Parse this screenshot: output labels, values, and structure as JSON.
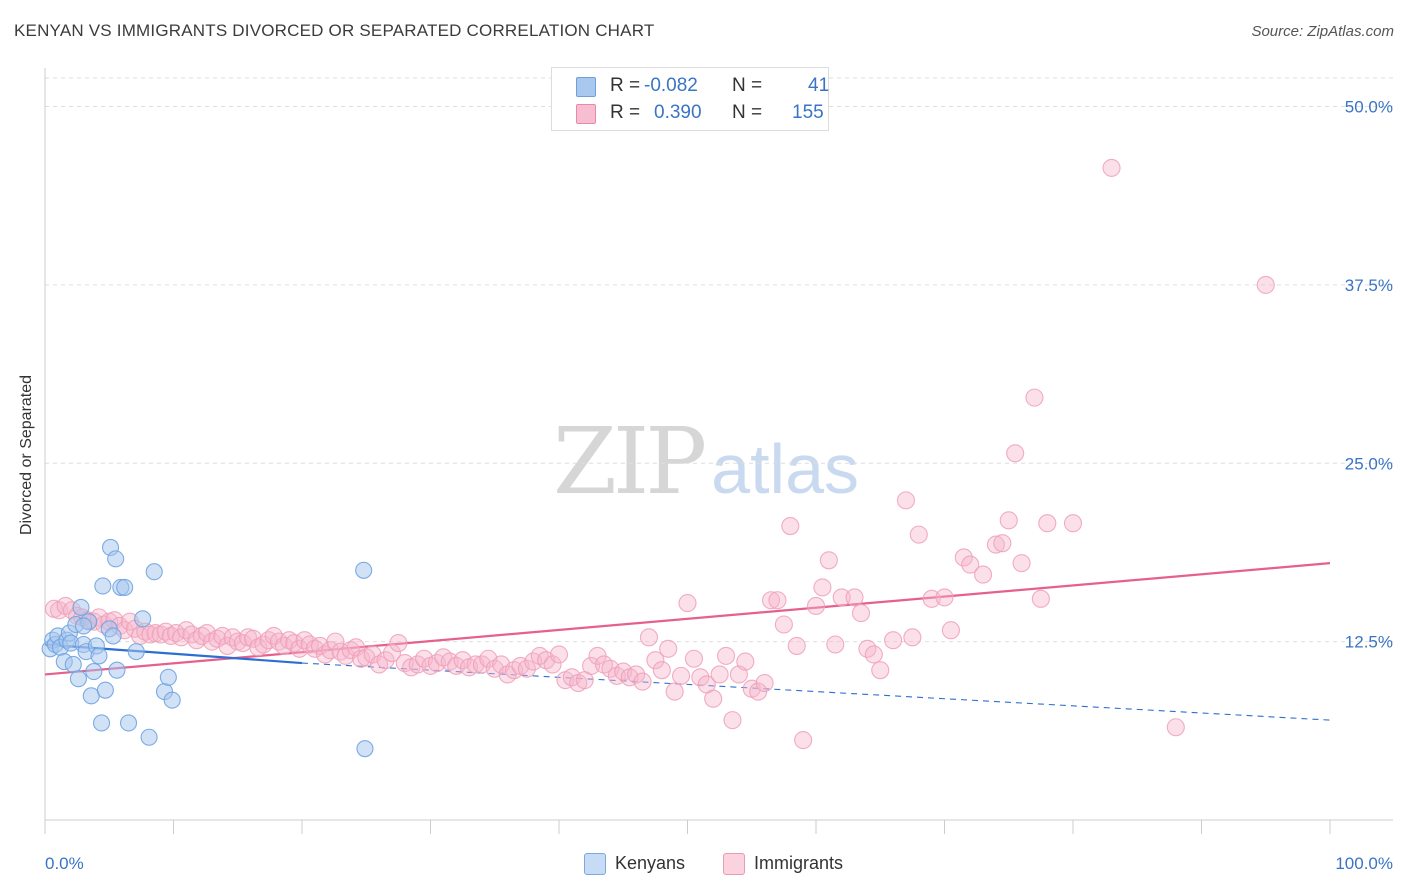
{
  "header": {
    "title": "KENYAN VS IMMIGRANTS DIVORCED OR SEPARATED CORRELATION CHART",
    "source": "Source: ZipAtlas.com"
  },
  "watermark": {
    "zip": "ZIP",
    "atlas": "atlas"
  },
  "legend": {
    "rows": [
      {
        "r_label": "R =",
        "r_value": "-0.082",
        "n_label": "N =",
        "n_value": "41",
        "color": "#a9c8ef",
        "border": "#6f9fd8"
      },
      {
        "r_label": "R =",
        "r_value": "0.390",
        "n_label": "N =",
        "n_value": "155",
        "color": "#f7bdd0",
        "border": "#e889aa"
      }
    ]
  },
  "bottom_legend": [
    {
      "label": "Kenyans",
      "color": "#c6dbf5",
      "border": "#7ea8de"
    },
    {
      "label": "Immigrants",
      "color": "#fbd3df",
      "border": "#eb9ab5"
    }
  ],
  "colors": {
    "kenyan_point": "#6fa3e0",
    "kenyan_line": "#2d6fd1",
    "immigrant_point": "#ee9fb8",
    "immigrant_line": "#e5608e",
    "tick_label": "#3a74c4",
    "grid": "#dedede"
  },
  "chart_data": {
    "type": "scatter",
    "title": "KENYAN VS IMMIGRANTS DIVORCED OR SEPARATED CORRELATION CHART",
    "xlabel": "",
    "ylabel": "Divorced or Separated",
    "xlim": [
      0,
      100
    ],
    "ylim": [
      0,
      52
    ],
    "x_tick_labels": [
      "0.0%",
      "100.0%"
    ],
    "y_ticks": [
      12.5,
      25.0,
      37.5,
      50.0
    ],
    "y_tick_labels": [
      "12.5%",
      "25.0%",
      "37.5%",
      "50.0%"
    ],
    "grid": true,
    "legend_position": "top-center",
    "series": [
      {
        "name": "Kenyans",
        "r": -0.082,
        "n": 41,
        "trend": {
          "x": [
            0,
            20
          ],
          "y": [
            12.3,
            11.0
          ],
          "dashed_extension_to": [
            100,
            7.0
          ]
        },
        "points": [
          [
            0.4,
            12.0
          ],
          [
            0.6,
            12.6
          ],
          [
            0.8,
            12.3
          ],
          [
            1.0,
            12.9
          ],
          [
            1.2,
            12.1
          ],
          [
            1.5,
            11.1
          ],
          [
            1.7,
            12.6
          ],
          [
            1.9,
            13.1
          ],
          [
            2.0,
            12.4
          ],
          [
            2.2,
            10.9
          ],
          [
            2.4,
            13.7
          ],
          [
            2.6,
            9.9
          ],
          [
            2.8,
            14.9
          ],
          [
            3.0,
            12.3
          ],
          [
            3.2,
            11.8
          ],
          [
            3.4,
            13.9
          ],
          [
            3.6,
            8.7
          ],
          [
            3.8,
            10.4
          ],
          [
            4.0,
            12.2
          ],
          [
            4.2,
            11.5
          ],
          [
            4.4,
            6.8
          ],
          [
            4.7,
            9.1
          ],
          [
            5.0,
            13.4
          ],
          [
            5.3,
            12.9
          ],
          [
            5.6,
            10.5
          ],
          [
            3.0,
            13.6
          ],
          [
            4.5,
            16.4
          ],
          [
            5.1,
            19.1
          ],
          [
            5.5,
            18.3
          ],
          [
            5.9,
            16.3
          ],
          [
            6.2,
            16.3
          ],
          [
            6.5,
            6.8
          ],
          [
            7.1,
            11.8
          ],
          [
            7.6,
            14.1
          ],
          [
            8.1,
            5.8
          ],
          [
            8.5,
            17.4
          ],
          [
            9.3,
            9.0
          ],
          [
            9.6,
            10.0
          ],
          [
            9.9,
            8.4
          ],
          [
            24.8,
            17.5
          ],
          [
            24.9,
            5.0
          ]
        ]
      },
      {
        "name": "Immigrants",
        "r": 0.39,
        "n": 155,
        "trend": {
          "x": [
            0,
            100
          ],
          "y": [
            10.2,
            18.0
          ]
        },
        "points": [
          [
            0.7,
            14.8
          ],
          [
            1.1,
            14.7
          ],
          [
            1.6,
            15.0
          ],
          [
            2.1,
            14.7
          ],
          [
            2.5,
            14.3
          ],
          [
            2.9,
            14.2
          ],
          [
            3.3,
            14.0
          ],
          [
            3.8,
            13.9
          ],
          [
            4.2,
            14.2
          ],
          [
            4.6,
            13.7
          ],
          [
            5.0,
            13.9
          ],
          [
            5.4,
            14.0
          ],
          [
            5.8,
            13.6
          ],
          [
            6.2,
            13.3
          ],
          [
            6.6,
            13.9
          ],
          [
            7.0,
            13.4
          ],
          [
            7.4,
            12.9
          ],
          [
            7.8,
            13.2
          ],
          [
            8.2,
            13.0
          ],
          [
            8.6,
            13.1
          ],
          [
            9.0,
            13.0
          ],
          [
            9.4,
            13.2
          ],
          [
            9.8,
            12.9
          ],
          [
            10.2,
            13.1
          ],
          [
            10.6,
            12.8
          ],
          [
            11.0,
            13.3
          ],
          [
            11.4,
            13.0
          ],
          [
            11.8,
            12.6
          ],
          [
            12.2,
            12.9
          ],
          [
            12.6,
            13.1
          ],
          [
            13.0,
            12.5
          ],
          [
            13.4,
            12.7
          ],
          [
            13.8,
            12.9
          ],
          [
            14.2,
            12.2
          ],
          [
            14.6,
            12.8
          ],
          [
            15.0,
            12.5
          ],
          [
            15.4,
            12.4
          ],
          [
            15.8,
            12.8
          ],
          [
            16.2,
            12.7
          ],
          [
            16.6,
            12.1
          ],
          [
            17.0,
            12.3
          ],
          [
            17.4,
            12.6
          ],
          [
            17.8,
            12.9
          ],
          [
            18.2,
            12.5
          ],
          [
            18.6,
            12.2
          ],
          [
            19.0,
            12.6
          ],
          [
            19.4,
            12.4
          ],
          [
            19.8,
            12.0
          ],
          [
            20.2,
            12.6
          ],
          [
            20.6,
            12.3
          ],
          [
            21.0,
            12.0
          ],
          [
            21.4,
            12.2
          ],
          [
            21.8,
            11.6
          ],
          [
            22.2,
            11.9
          ],
          [
            22.6,
            12.5
          ],
          [
            23.0,
            11.8
          ],
          [
            23.4,
            11.5
          ],
          [
            23.8,
            11.9
          ],
          [
            24.2,
            12.1
          ],
          [
            24.6,
            11.3
          ],
          [
            25.0,
            11.4
          ],
          [
            25.5,
            11.6
          ],
          [
            26.0,
            10.9
          ],
          [
            26.5,
            11.2
          ],
          [
            27.0,
            11.7
          ],
          [
            27.5,
            12.4
          ],
          [
            28.0,
            11.0
          ],
          [
            28.5,
            10.7
          ],
          [
            29.0,
            10.9
          ],
          [
            29.5,
            11.3
          ],
          [
            30.0,
            10.8
          ],
          [
            30.5,
            11.0
          ],
          [
            31.0,
            11.4
          ],
          [
            31.5,
            11.1
          ],
          [
            32.0,
            10.8
          ],
          [
            32.5,
            11.2
          ],
          [
            33.0,
            10.7
          ],
          [
            33.5,
            10.9
          ],
          [
            34.0,
            10.9
          ],
          [
            34.5,
            11.3
          ],
          [
            35.0,
            10.6
          ],
          [
            35.5,
            10.9
          ],
          [
            36.0,
            10.2
          ],
          [
            36.5,
            10.5
          ],
          [
            37.0,
            10.8
          ],
          [
            37.5,
            10.6
          ],
          [
            38.0,
            11.1
          ],
          [
            38.5,
            11.5
          ],
          [
            39.0,
            11.2
          ],
          [
            39.5,
            10.9
          ],
          [
            40.0,
            11.6
          ],
          [
            40.5,
            9.8
          ],
          [
            41.0,
            10.0
          ],
          [
            41.5,
            9.6
          ],
          [
            42.0,
            9.8
          ],
          [
            42.5,
            10.8
          ],
          [
            43.0,
            11.5
          ],
          [
            43.5,
            10.9
          ],
          [
            44.0,
            10.6
          ],
          [
            44.5,
            10.1
          ],
          [
            45.0,
            10.4
          ],
          [
            45.5,
            10.0
          ],
          [
            46.0,
            10.2
          ],
          [
            46.5,
            9.7
          ],
          [
            47.0,
            12.8
          ],
          [
            47.5,
            11.2
          ],
          [
            48.0,
            10.5
          ],
          [
            48.5,
            12.0
          ],
          [
            49.0,
            9.0
          ],
          [
            49.5,
            10.1
          ],
          [
            50.0,
            15.2
          ],
          [
            50.5,
            11.3
          ],
          [
            51.0,
            10.0
          ],
          [
            51.5,
            9.5
          ],
          [
            52.0,
            8.5
          ],
          [
            52.5,
            10.2
          ],
          [
            53.0,
            11.5
          ],
          [
            53.5,
            7.0
          ],
          [
            54.0,
            10.2
          ],
          [
            54.5,
            11.1
          ],
          [
            55.0,
            9.2
          ],
          [
            55.5,
            9.0
          ],
          [
            56.0,
            9.6
          ],
          [
            56.5,
            15.4
          ],
          [
            57.0,
            15.4
          ],
          [
            57.5,
            13.7
          ],
          [
            58.0,
            20.6
          ],
          [
            58.5,
            12.2
          ],
          [
            59.0,
            5.6
          ],
          [
            60.0,
            15.0
          ],
          [
            60.5,
            16.3
          ],
          [
            61.0,
            18.2
          ],
          [
            61.5,
            12.3
          ],
          [
            62.0,
            15.6
          ],
          [
            63.0,
            15.6
          ],
          [
            63.5,
            14.5
          ],
          [
            64.0,
            12.0
          ],
          [
            64.5,
            11.6
          ],
          [
            65.0,
            10.5
          ],
          [
            66.0,
            12.6
          ],
          [
            67.0,
            22.4
          ],
          [
            67.5,
            12.8
          ],
          [
            68.0,
            20.0
          ],
          [
            69.0,
            15.5
          ],
          [
            70.0,
            15.6
          ],
          [
            70.5,
            13.3
          ],
          [
            71.5,
            18.4
          ],
          [
            72.0,
            17.9
          ],
          [
            73.0,
            17.2
          ],
          [
            74.0,
            19.3
          ],
          [
            74.5,
            19.4
          ],
          [
            75.0,
            21.0
          ],
          [
            75.5,
            25.7
          ],
          [
            76.0,
            18.0
          ],
          [
            77.0,
            29.6
          ],
          [
            77.5,
            15.5
          ],
          [
            78.0,
            20.8
          ],
          [
            80.0,
            20.8
          ],
          [
            83.0,
            45.7
          ],
          [
            88.0,
            6.5
          ],
          [
            95.0,
            37.5
          ]
        ]
      }
    ]
  }
}
